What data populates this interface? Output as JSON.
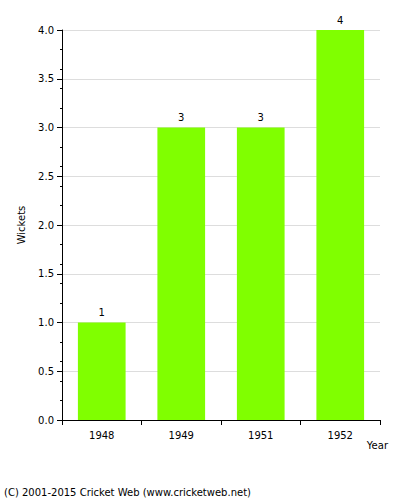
{
  "chart_data": {
    "type": "bar",
    "categories": [
      "1948",
      "1949",
      "1951",
      "1952"
    ],
    "values": [
      1,
      3,
      3,
      4
    ],
    "color": "#80ff00",
    "x_label": "Year",
    "y_label": "Wickets",
    "ylim": [
      0,
      4
    ],
    "yticks": [
      {
        "value": 0,
        "label": "0.0"
      },
      {
        "value": 0.5,
        "label": "0.5"
      },
      {
        "value": 1,
        "label": "1.0"
      },
      {
        "value": 1.5,
        "label": "1.5"
      },
      {
        "value": 2,
        "label": "2.0"
      },
      {
        "value": 2.5,
        "label": "2.5"
      },
      {
        "value": 3,
        "label": "3.0"
      },
      {
        "value": 3.5,
        "label": "3.5"
      },
      {
        "value": 4,
        "label": "4.0"
      }
    ],
    "grid": true,
    "data_labels": true,
    "annotations": [
      "(C) 2001-2015 Cricket Web (www.cricketweb.net)"
    ]
  }
}
